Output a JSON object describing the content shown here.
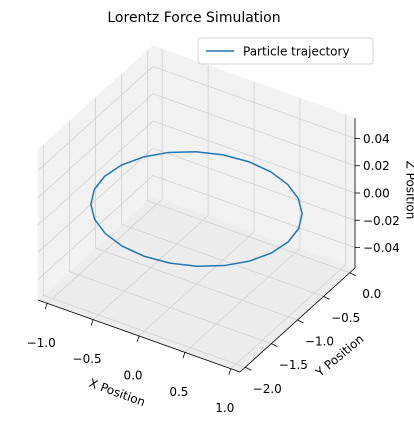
{
  "chart_data": {
    "type": "line3d",
    "title": "Lorentz Force Simulation",
    "xlabel": "X Position",
    "ylabel": "Y Position",
    "zlabel": "Z Position",
    "series": [
      {
        "name": "Particle trajectory",
        "color": "#1f77b4",
        "x": [
          1,
          0.966,
          0.866,
          0.707,
          0.5,
          0.259,
          0,
          -0.259,
          -0.5,
          -0.707,
          -0.866,
          -0.966,
          -1,
          -0.966,
          -0.866,
          -0.707,
          -0.5,
          -0.259,
          0,
          0.259,
          0.5,
          0.707,
          0.866,
          0.966,
          1
        ],
        "y": [
          -1,
          -0.741,
          -0.5,
          -0.293,
          -0.134,
          -0.034,
          0,
          -0.034,
          -0.134,
          -0.293,
          -0.5,
          -0.741,
          -1,
          -1.259,
          -1.5,
          -1.707,
          -1.866,
          -1.966,
          -2,
          -1.966,
          -1.866,
          -1.707,
          -1.5,
          -1.259,
          -1
        ],
        "z": [
          0,
          0,
          0,
          0,
          0,
          0,
          0,
          0,
          0,
          0,
          0,
          0,
          0,
          0,
          0,
          0,
          0,
          0,
          0,
          0,
          0,
          0,
          0,
          0,
          0
        ]
      }
    ],
    "xlim": [
      -1.1,
      1.1
    ],
    "ylim": [
      -2.1,
      0.1
    ],
    "zlim": [
      -0.055,
      0.055
    ],
    "xticks": [
      {
        "value": -1,
        "label": "−1.0"
      },
      {
        "value": -0.5,
        "label": "−0.5"
      },
      {
        "value": 0,
        "label": "0.0"
      },
      {
        "value": 0.5,
        "label": "0.5"
      },
      {
        "value": 1,
        "label": "1.0"
      }
    ],
    "yticks": [
      {
        "value": 0,
        "label": "0.0"
      },
      {
        "value": -0.5,
        "label": "−0.5"
      },
      {
        "value": -1,
        "label": "−1.0"
      },
      {
        "value": -1.5,
        "label": "−1.5"
      },
      {
        "value": -2,
        "label": "−2.0"
      }
    ],
    "zticks": [
      {
        "value": -0.04,
        "label": "−0.04"
      },
      {
        "value": -0.02,
        "label": "−0.02"
      },
      {
        "value": 0,
        "label": "0.00"
      },
      0.02,
      0.04
    ],
    "grid": true,
    "legend": "upper right"
  }
}
